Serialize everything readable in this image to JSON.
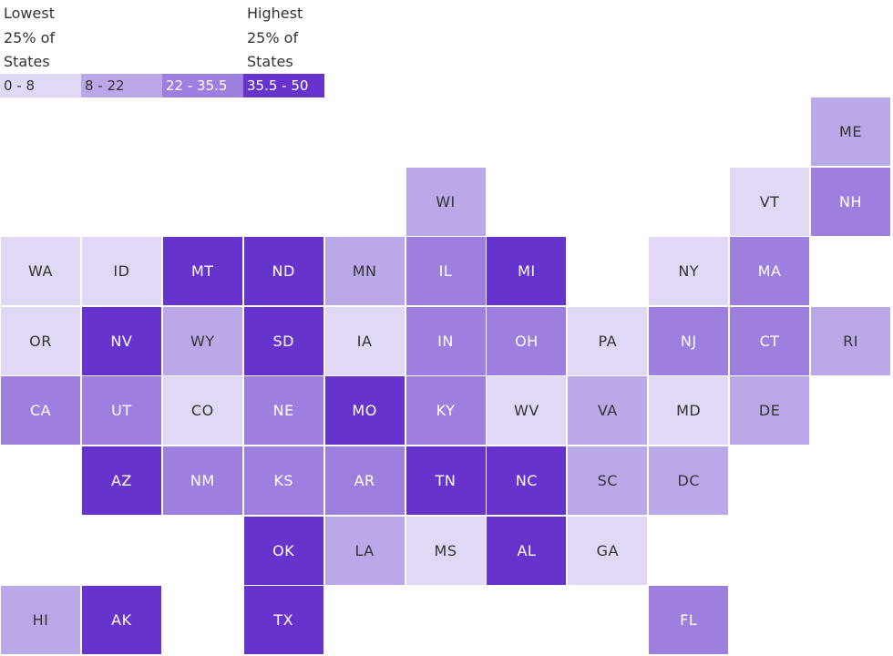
{
  "legend": {
    "low_caption": "Lowest\n25% of\nStates",
    "high_caption": "Highest\n25% of\nStates",
    "bins": [
      {
        "label": "0 - 8",
        "color": "#e0d8f5"
      },
      {
        "label": "8 - 22",
        "color": "#bba8e8"
      },
      {
        "label": "22 - 35.5",
        "color": "#9d7fdf"
      },
      {
        "label": "35.5 - 50",
        "color": "#6633cc"
      }
    ]
  },
  "states": [
    {
      "abbr": "ME",
      "row": 0,
      "col": 10,
      "bin": 1
    },
    {
      "abbr": "WI",
      "row": 1,
      "col": 5,
      "bin": 1
    },
    {
      "abbr": "VT",
      "row": 1,
      "col": 9,
      "bin": 0
    },
    {
      "abbr": "NH",
      "row": 1,
      "col": 10,
      "bin": 2
    },
    {
      "abbr": "WA",
      "row": 2,
      "col": 0,
      "bin": 0
    },
    {
      "abbr": "ID",
      "row": 2,
      "col": 1,
      "bin": 0
    },
    {
      "abbr": "MT",
      "row": 2,
      "col": 2,
      "bin": 3
    },
    {
      "abbr": "ND",
      "row": 2,
      "col": 3,
      "bin": 3
    },
    {
      "abbr": "MN",
      "row": 2,
      "col": 4,
      "bin": 1
    },
    {
      "abbr": "IL",
      "row": 2,
      "col": 5,
      "bin": 2
    },
    {
      "abbr": "MI",
      "row": 2,
      "col": 6,
      "bin": 3
    },
    {
      "abbr": "NY",
      "row": 2,
      "col": 8,
      "bin": 0
    },
    {
      "abbr": "MA",
      "row": 2,
      "col": 9,
      "bin": 2
    },
    {
      "abbr": "OR",
      "row": 3,
      "col": 0,
      "bin": 0
    },
    {
      "abbr": "NV",
      "row": 3,
      "col": 1,
      "bin": 3
    },
    {
      "abbr": "WY",
      "row": 3,
      "col": 2,
      "bin": 1
    },
    {
      "abbr": "SD",
      "row": 3,
      "col": 3,
      "bin": 3
    },
    {
      "abbr": "IA",
      "row": 3,
      "col": 4,
      "bin": 0
    },
    {
      "abbr": "IN",
      "row": 3,
      "col": 5,
      "bin": 2
    },
    {
      "abbr": "OH",
      "row": 3,
      "col": 6,
      "bin": 2
    },
    {
      "abbr": "PA",
      "row": 3,
      "col": 7,
      "bin": 0
    },
    {
      "abbr": "NJ",
      "row": 3,
      "col": 8,
      "bin": 2
    },
    {
      "abbr": "CT",
      "row": 3,
      "col": 9,
      "bin": 2
    },
    {
      "abbr": "RI",
      "row": 3,
      "col": 10,
      "bin": 1
    },
    {
      "abbr": "CA",
      "row": 4,
      "col": 0,
      "bin": 2
    },
    {
      "abbr": "UT",
      "row": 4,
      "col": 1,
      "bin": 2
    },
    {
      "abbr": "CO",
      "row": 4,
      "col": 2,
      "bin": 0
    },
    {
      "abbr": "NE",
      "row": 4,
      "col": 3,
      "bin": 2
    },
    {
      "abbr": "MO",
      "row": 4,
      "col": 4,
      "bin": 3
    },
    {
      "abbr": "KY",
      "row": 4,
      "col": 5,
      "bin": 2
    },
    {
      "abbr": "WV",
      "row": 4,
      "col": 6,
      "bin": 0
    },
    {
      "abbr": "VA",
      "row": 4,
      "col": 7,
      "bin": 1
    },
    {
      "abbr": "MD",
      "row": 4,
      "col": 8,
      "bin": 0
    },
    {
      "abbr": "DE",
      "row": 4,
      "col": 9,
      "bin": 1
    },
    {
      "abbr": "AZ",
      "row": 5,
      "col": 1,
      "bin": 3
    },
    {
      "abbr": "NM",
      "row": 5,
      "col": 2,
      "bin": 2
    },
    {
      "abbr": "KS",
      "row": 5,
      "col": 3,
      "bin": 2
    },
    {
      "abbr": "AR",
      "row": 5,
      "col": 4,
      "bin": 2
    },
    {
      "abbr": "TN",
      "row": 5,
      "col": 5,
      "bin": 3
    },
    {
      "abbr": "NC",
      "row": 5,
      "col": 6,
      "bin": 3
    },
    {
      "abbr": "SC",
      "row": 5,
      "col": 7,
      "bin": 1
    },
    {
      "abbr": "DC",
      "row": 5,
      "col": 8,
      "bin": 1
    },
    {
      "abbr": "OK",
      "row": 6,
      "col": 3,
      "bin": 3
    },
    {
      "abbr": "LA",
      "row": 6,
      "col": 4,
      "bin": 1
    },
    {
      "abbr": "MS",
      "row": 6,
      "col": 5,
      "bin": 0
    },
    {
      "abbr": "AL",
      "row": 6,
      "col": 6,
      "bin": 3
    },
    {
      "abbr": "GA",
      "row": 6,
      "col": 7,
      "bin": 0
    },
    {
      "abbr": "HI",
      "row": 7,
      "col": 0,
      "bin": 1
    },
    {
      "abbr": "AK",
      "row": 7,
      "col": 1,
      "bin": 3
    },
    {
      "abbr": "TX",
      "row": 7,
      "col": 3,
      "bin": 3
    },
    {
      "abbr": "FL",
      "row": 7,
      "col": 8,
      "bin": 2
    }
  ]
}
